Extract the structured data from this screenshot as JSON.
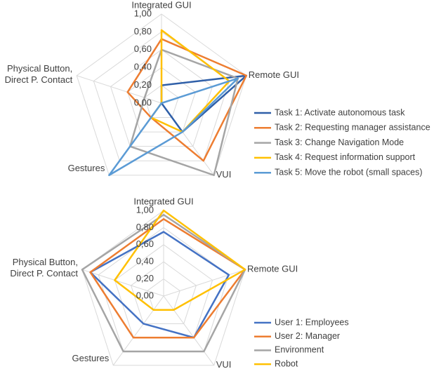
{
  "chart_data": [
    {
      "type": "radar",
      "categories": [
        "Integrated GUI",
        "Remote  GUI",
        "VUI",
        "Gestures",
        "Physical Button, Direct P. Contact"
      ],
      "rlim": [
        0,
        1
      ],
      "rticks": [
        {
          "value": 0,
          "label": "0,00"
        },
        {
          "value": 0.2,
          "label": "0,20"
        },
        {
          "value": 0.4,
          "label": "0,40"
        },
        {
          "value": 0.6,
          "label": "0,60"
        },
        {
          "value": 0.8,
          "label": "0,80"
        },
        {
          "value": 1,
          "label": "1,00"
        }
      ],
      "series": [
        {
          "name": "Task 1: Activate autonomous task",
          "color": "#2f5fa8",
          "values": [
            0.2,
            1.0,
            0.4,
            0.0,
            0.0
          ]
        },
        {
          "name": "Task 2: Requesting manager assistance",
          "color": "#ed7d31",
          "values": [
            0.72,
            1.0,
            0.8,
            0.2,
            0.4
          ]
        },
        {
          "name": "Task 3: Change Navigation Mode",
          "color": "#a5a5a5",
          "values": [
            0.6,
            0.9,
            1.0,
            0.6,
            0.2
          ]
        },
        {
          "name": "Task 4: Request information support",
          "color": "#ffc000",
          "values": [
            0.82,
            0.8,
            0.4,
            0.2,
            0.0
          ]
        },
        {
          "name": "Task 5: Move the robot (small spaces)",
          "color": "#5b9bd5",
          "values": [
            0.0,
            0.9,
            0.4,
            1.0,
            0.0
          ]
        }
      ]
    },
    {
      "type": "radar",
      "categories": [
        "Integrated GUI",
        "Remote  GUI",
        "VUI",
        "Gestures",
        "Physical Button, Direct P. Contact"
      ],
      "rlim": [
        0,
        1
      ],
      "rticks": [
        {
          "value": 0,
          "label": "0,00"
        },
        {
          "value": 0.2,
          "label": "0,20"
        },
        {
          "value": 0.4,
          "label": "0,40"
        },
        {
          "value": 0.6,
          "label": "0,60"
        },
        {
          "value": 0.8,
          "label": "0,80"
        },
        {
          "value": 1,
          "label": "1,00"
        }
      ],
      "series": [
        {
          "name": "User 1: Employees",
          "color": "#4472c4",
          "values": [
            0.75,
            0.8,
            0.6,
            0.4,
            0.9
          ]
        },
        {
          "name": "User 2: Manager",
          "color": "#ed7d31",
          "values": [
            0.9,
            1.0,
            0.6,
            0.6,
            0.9
          ]
        },
        {
          "name": "Environment",
          "color": "#a5a5a5",
          "values": [
            0.95,
            1.0,
            0.8,
            0.8,
            1.0
          ]
        },
        {
          "name": "Robot",
          "color": "#ffc000",
          "values": [
            1.0,
            1.0,
            0.2,
            0.2,
            0.6
          ]
        }
      ]
    }
  ]
}
